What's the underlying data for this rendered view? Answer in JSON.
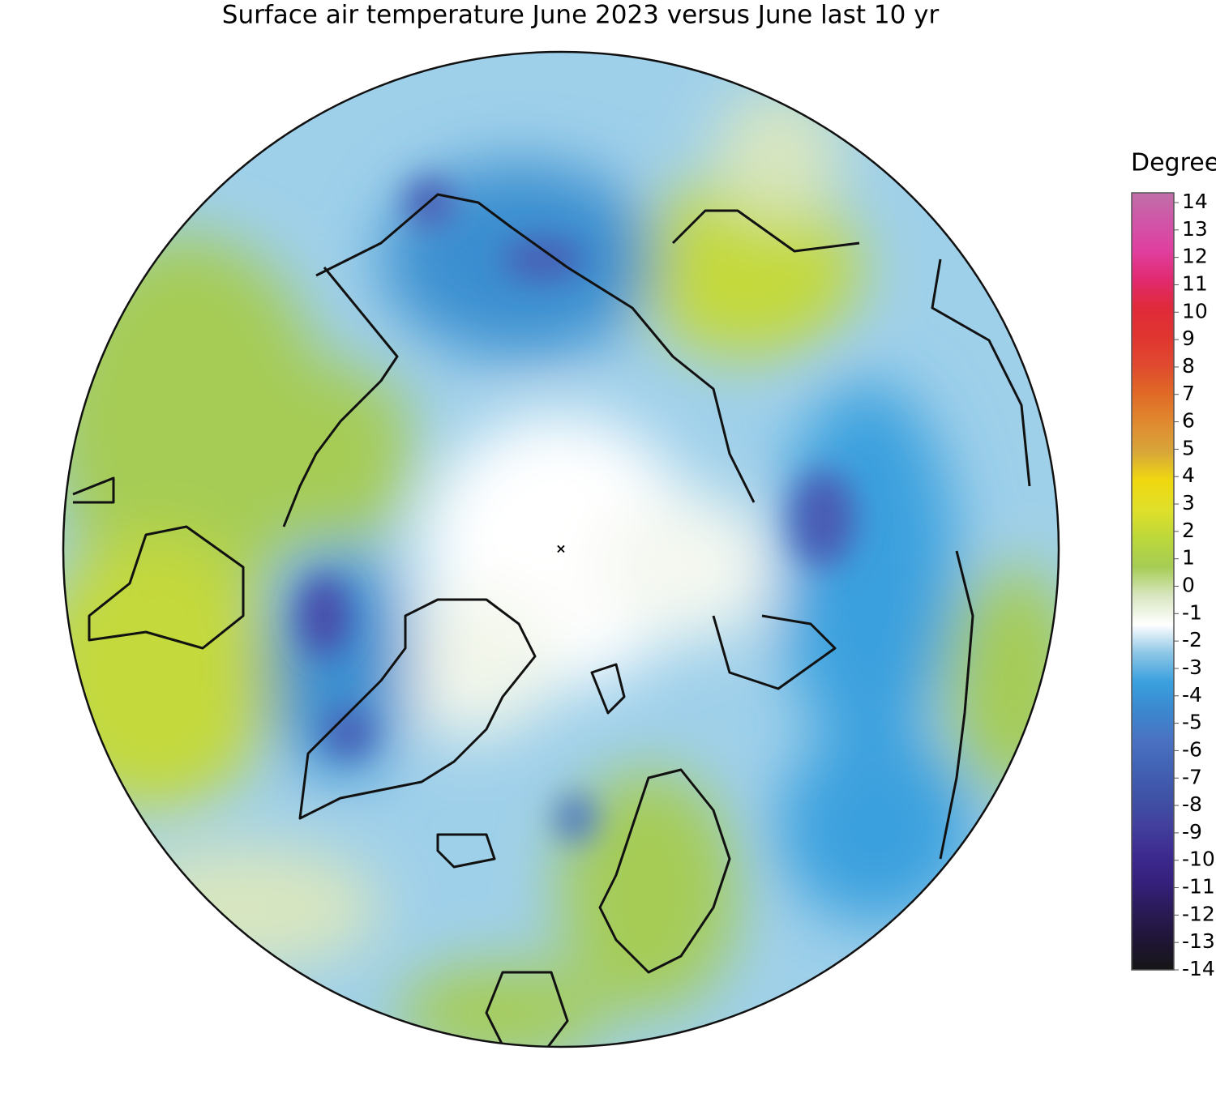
{
  "title": "Surface air temperature June 2023 versus June last 10 yr",
  "colorbar": {
    "label": "Degrees C",
    "lim": [
      -14,
      14
    ],
    "ticks": [
      14,
      13,
      12,
      11,
      10,
      9,
      8,
      7,
      6,
      5,
      4,
      3,
      2,
      1,
      0,
      -1,
      -2,
      -3,
      -4,
      -5,
      -6,
      -7,
      -8,
      -9,
      -10,
      -11,
      -12,
      -13,
      -14
    ],
    "colors": [
      "#161616",
      "#1f1535",
      "#2a1a55",
      "#35207a",
      "#3d2a90",
      "#42409c",
      "#3f52a6",
      "#4262b4",
      "#4a72c2",
      "#3b88cf",
      "#3aa0de",
      "#8cc6e6",
      "#ffffff",
      "#d8e6c0",
      "#a6cc55",
      "#bcd83a",
      "#e0e02a",
      "#efd810",
      "#d8a63a",
      "#e08a30",
      "#e06a25",
      "#e04a30",
      "#e03530",
      "#e02a3a",
      "#e02a70",
      "#e03fa0",
      "#d055a8",
      "#c070a8"
    ]
  }
}
